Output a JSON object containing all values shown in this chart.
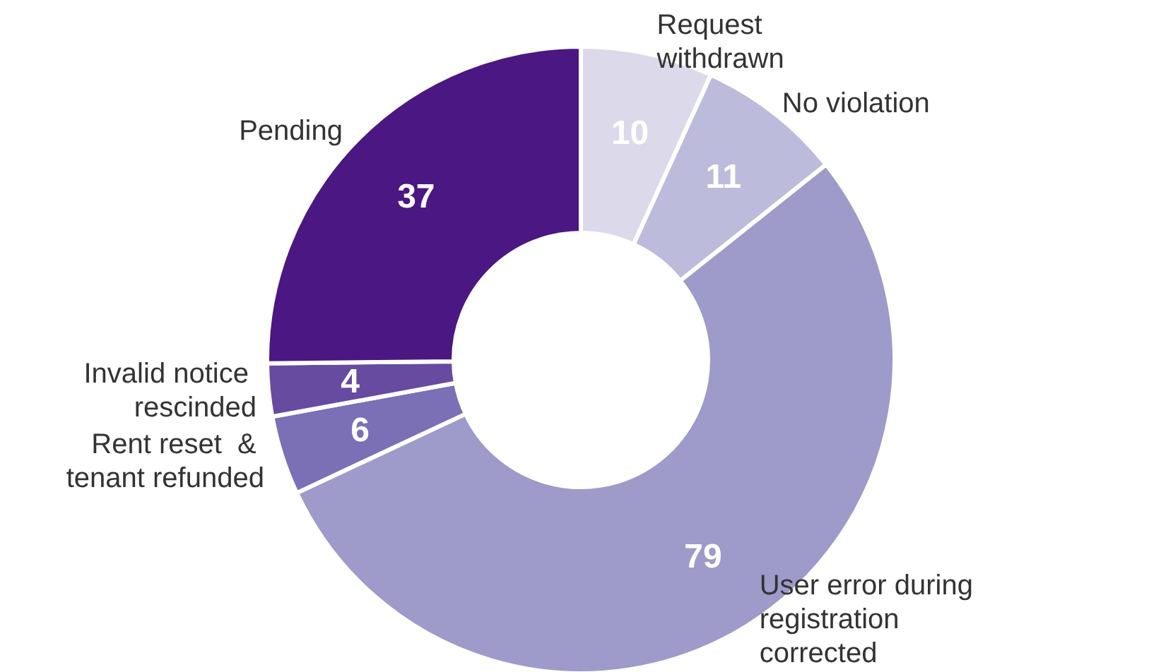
{
  "chart_data": {
    "type": "donut",
    "categories": [
      "Request withdrawn",
      "No violation",
      "User error during registration corrected",
      "Rent reset  & tenant refunded",
      "Invalid notice rescinded",
      "Pending"
    ],
    "values": [
      10,
      11,
      79,
      6,
      4,
      37
    ],
    "colors": [
      "#dcd9ea",
      "#bdbbdc",
      "#9e9aca",
      "#7b70b6",
      "#674ba0",
      "#4b1782"
    ],
    "data_labels": true,
    "legend": false
  }
}
